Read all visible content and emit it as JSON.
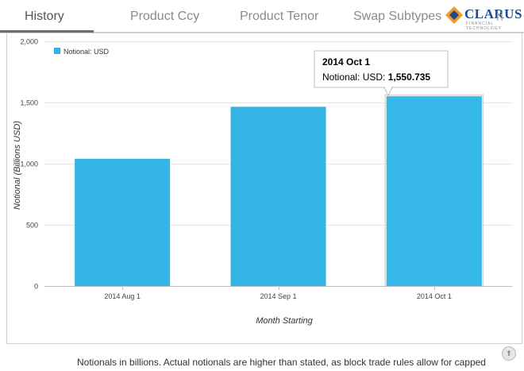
{
  "tabs": [
    {
      "label": "History",
      "active": true
    },
    {
      "label": "Product Ccy",
      "active": false
    },
    {
      "label": "Product Tenor",
      "active": false
    },
    {
      "label": "Swap Subtypes",
      "active": false
    }
  ],
  "logo": {
    "name": "CLARUS",
    "subtitle": "FINANCIAL TECHNOLOGY",
    "tab_fragment": "ri"
  },
  "colors": {
    "bar": "#33b5e5",
    "bar_highlight": "#35b7e8",
    "logo_orange": "#f29a1f",
    "logo_blue": "#1c4a8c"
  },
  "chart_data": {
    "type": "bar",
    "categories": [
      "2014 Aug 1",
      "2014 Sep 1",
      "2014 Oct 1"
    ],
    "series": [
      {
        "name": "Notional: USD",
        "values": [
          1040,
          1465,
          1550.735
        ]
      }
    ],
    "xlabel": "Month Starting",
    "ylabel": "Notional (Billions USD)",
    "ylim": [
      0,
      2000
    ],
    "yticks": [
      0,
      500,
      1000,
      1500,
      2000
    ],
    "ytick_labels": [
      "0",
      "500",
      "1,000",
      "1,500",
      "2,000"
    ],
    "grid": true,
    "legend": "top-left",
    "tooltip": {
      "title": "2014 Oct 1",
      "label": "Notional: USD:",
      "value": "1,550.735",
      "category_index": 2
    }
  },
  "footer": {
    "text": "Notionals in billions. Actual notionals are higher than stated, as block trade rules allow for capped"
  }
}
